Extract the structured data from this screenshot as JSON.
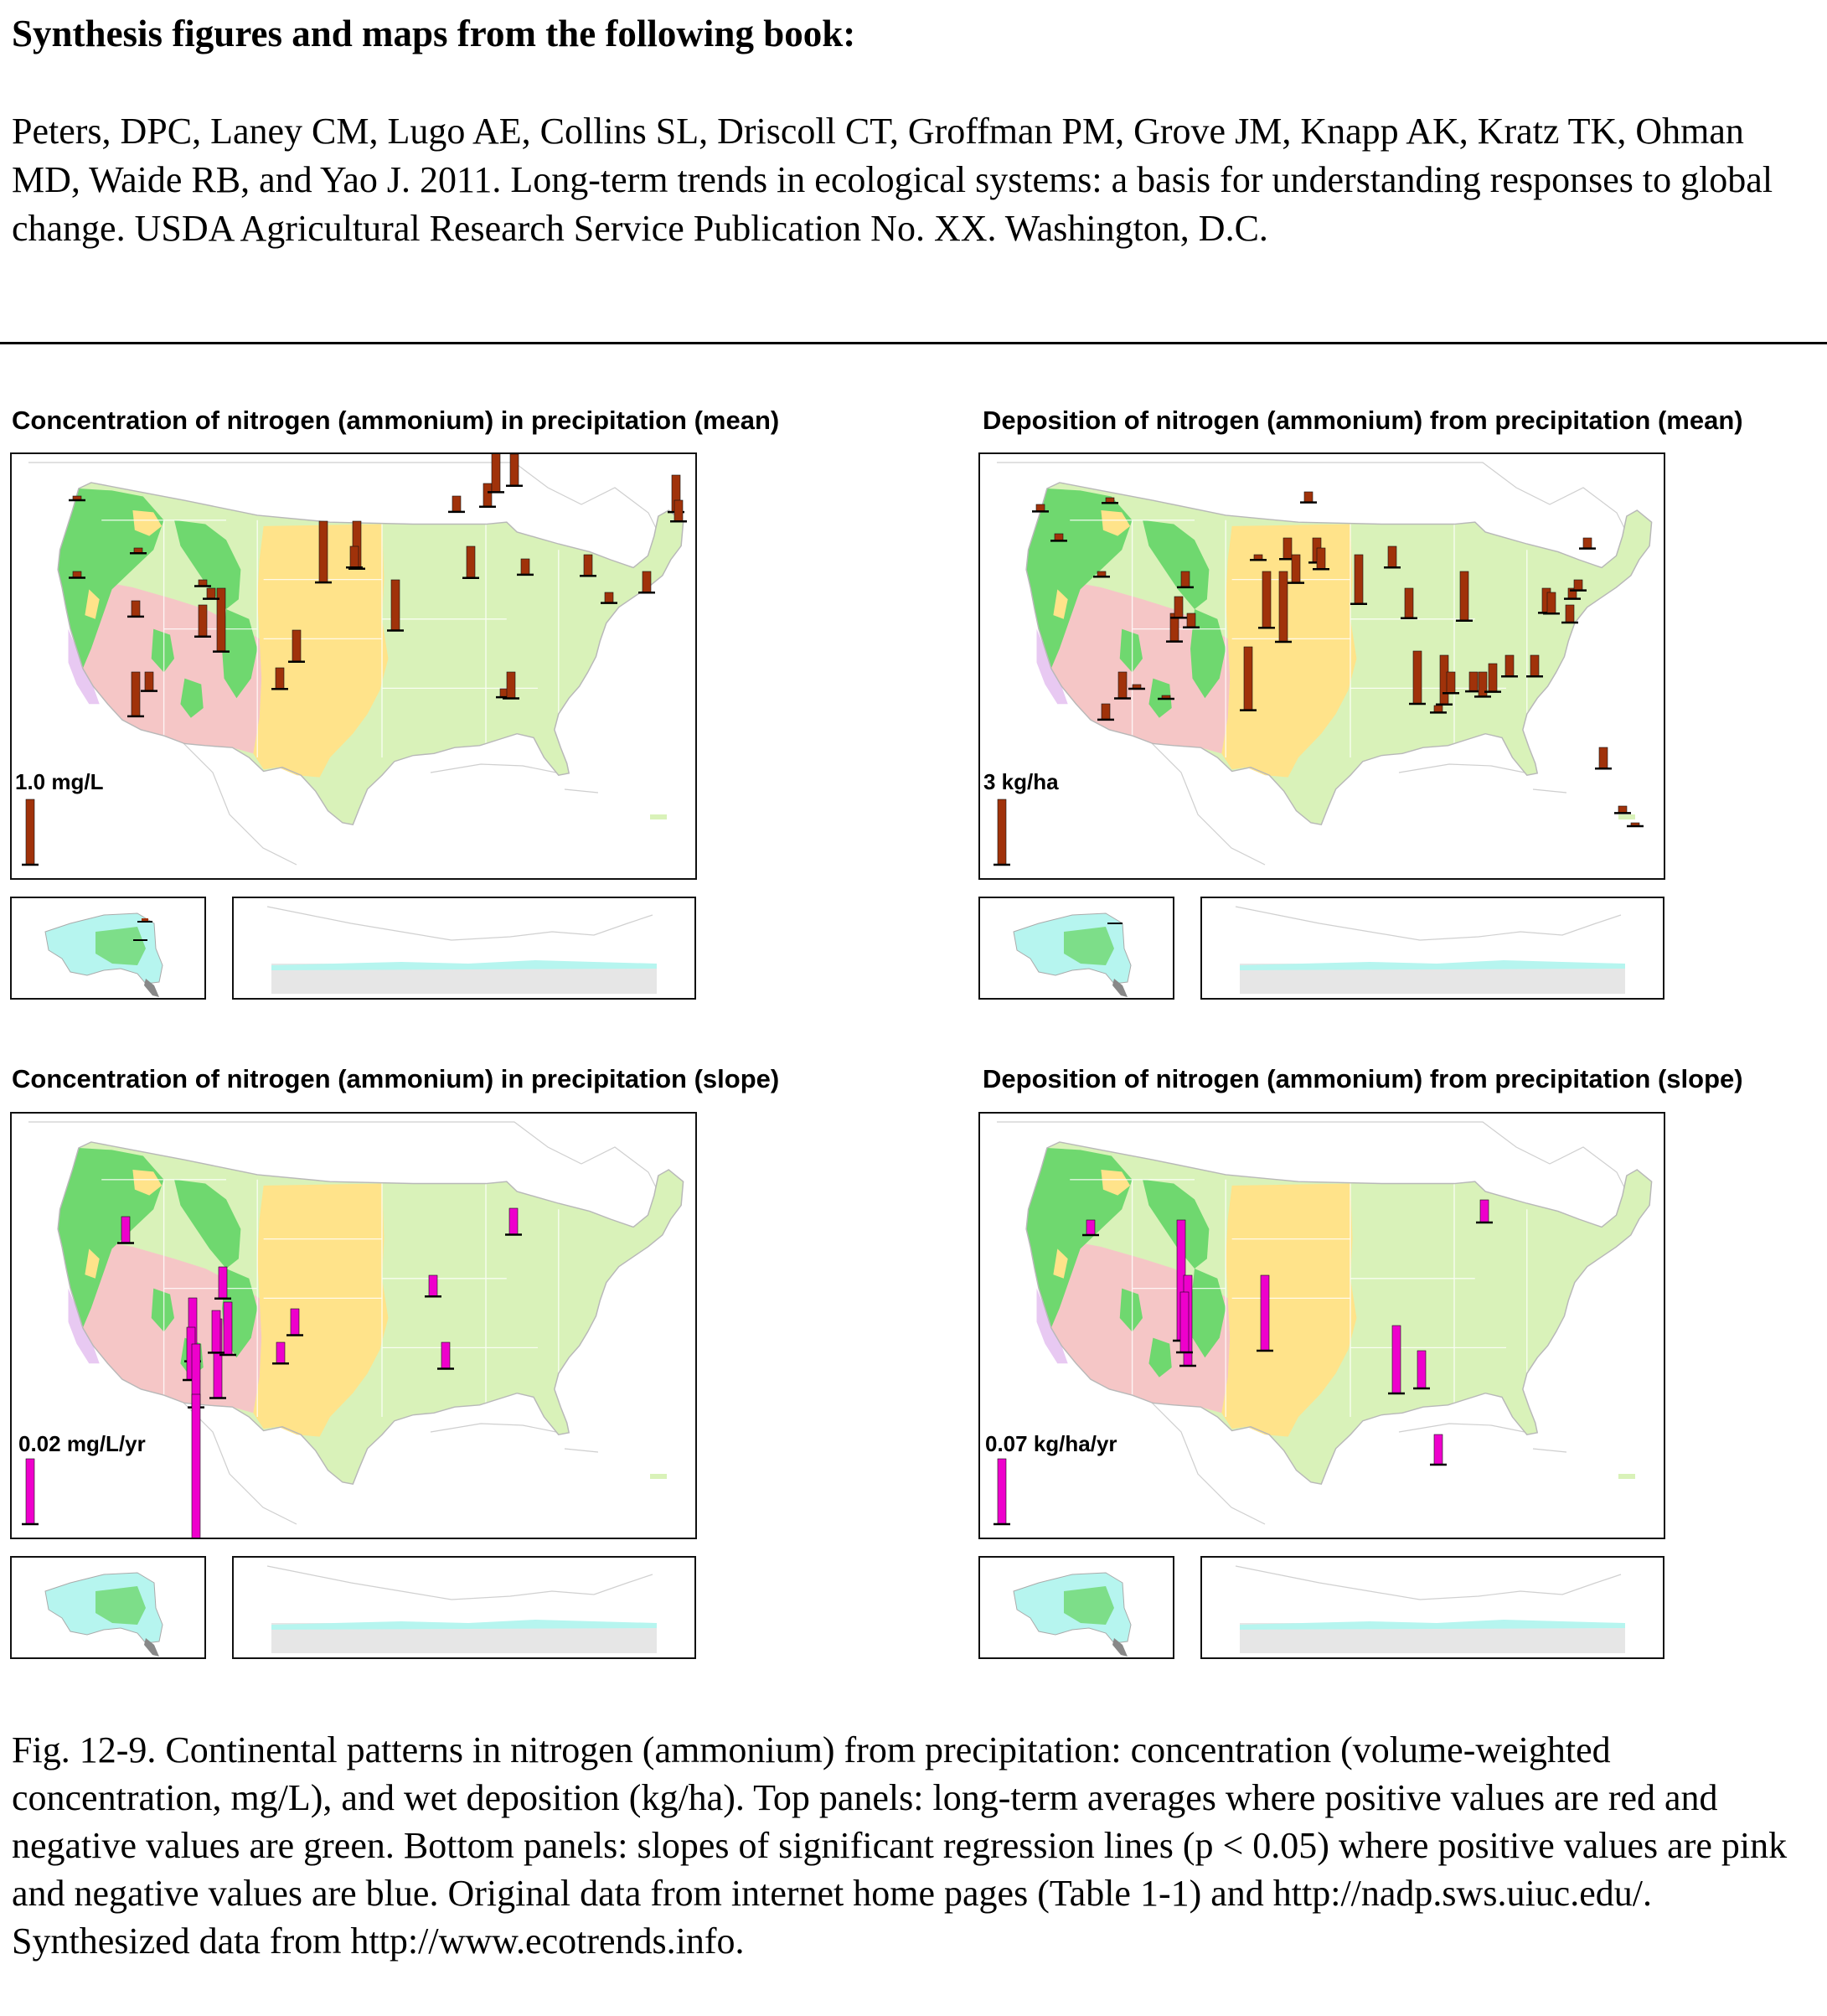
{
  "heading": "Synthesis figures and maps from the following book:",
  "citation": "Peters, DPC, Laney CM, Lugo AE,  Collins SL, Driscoll CT, Groffman PM, Grove JM, Knapp AK, Kratz TK, Ohman MD, Waide RB, and Yao J. 2011. Long-term trends in ecological systems: a basis for understanding responses to global change. USDA Agricultural Research Service Publication No. XX. Washington, D.C.",
  "caption": "Fig. 12-9. Continental patterns in nitrogen (ammonium) from precipitation: concentration (volume-weighted concentration, mg/L), and wet deposition (kg/ha). Top panels: long-term averages where positive values are red and negative values are green. Bottom panels: slopes of significant regression lines (p < 0.05) where positive values are pink and negative values are blue.  Original data from internet home pages (Table 1-1) and http://nadp.sws.uiuc.edu/.  Synthesized data from http://www.ecotrends.info.",
  "colors": {
    "mean_bar": "#a0320a",
    "slope_bar": "#ee00cc",
    "green_dark": "#6fd86f",
    "green_light": "#d9f2b9",
    "pink": "#f5c6c6",
    "yellow": "#ffe38a",
    "lavender": "#e8c9f2",
    "alaska_cyan": "#b6f5ef"
  },
  "panels": [
    {
      "id": "conc-mean",
      "title": "Concentration of nitrogen (ammonium) in precipitation (mean)",
      "scale_label": "1.0 mg/L",
      "bar_type": "mean",
      "scale_value": 1.0,
      "sites": [
        [
          95,
          430,
          0.12
        ],
        [
          148,
          462,
          0.08
        ],
        [
          145,
          520,
          0.05
        ],
        [
          90,
          590,
          0.04
        ],
        [
          90,
          680,
          0.06
        ],
        [
          163,
          652,
          0.05
        ],
        [
          160,
          800,
          0.42
        ],
        [
          176,
          800,
          0.18
        ],
        [
          160,
          715,
          0.15
        ],
        [
          240,
          720,
          0.3
        ],
        [
          262,
          700,
          0.6
        ],
        [
          250,
          700,
          0.1
        ],
        [
          240,
          690,
          0.06
        ],
        [
          352,
          750,
          0.3
        ],
        [
          332,
          795,
          0.2
        ],
        [
          384,
          620,
          0.58
        ],
        [
          424,
          620,
          0.45
        ],
        [
          421,
          650,
          0.2
        ],
        [
          470,
          690,
          0.48
        ],
        [
          524,
          460,
          0.1
        ],
        [
          560,
          650,
          0.3
        ],
        [
          580,
          575,
          0.22
        ],
        [
          590,
          535,
          0.4
        ],
        [
          543,
          590,
          0.15
        ],
        [
          600,
          820,
          0.08
        ],
        [
          612,
          540,
          0.3
        ],
        [
          608,
          800,
          0.25
        ],
        [
          625,
          665,
          0.15
        ],
        [
          700,
          660,
          0.2
        ],
        [
          725,
          705,
          0.1
        ],
        [
          740,
          455,
          0.35
        ],
        [
          747,
          470,
          0.15
        ],
        [
          755,
          465,
          0.3
        ],
        [
          764,
          470,
          0.1
        ],
        [
          770,
          680,
          0.2
        ],
        [
          805,
          565,
          0.35
        ],
        [
          808,
          595,
          0.2
        ],
        [
          900,
          620,
          0.25
        ],
        [
          930,
          650,
          0.15
        ],
        [
          1000,
          690,
          0.28
        ],
        [
          1011,
          680,
          0.1
        ],
        [
          1033,
          710,
          0.1
        ],
        [
          1040,
          660,
          0.2
        ],
        [
          1048,
          660,
          0.15
        ],
        [
          1100,
          680,
          0.2
        ],
        [
          1118,
          600,
          0.25
        ],
        [
          1153,
          640,
          0.25
        ],
        [
          1163,
          605,
          0.3
        ],
        [
          1185,
          410,
          0.3
        ],
        [
          1190,
          430,
          0.25
        ],
        [
          1208,
          405,
          0.2
        ],
        [
          1205,
          665,
          0.15
        ],
        [
          1213,
          690,
          0.1
        ],
        [
          1217,
          825,
          0.15
        ],
        [
          1240,
          920,
          0.1
        ],
        [
          1262,
          950,
          0.05
        ]
      ]
    },
    {
      "id": "dep-mean",
      "title": "Deposition of nitrogen (ammonium) from precipitation (mean)",
      "scale_label": "3 kg/ha",
      "bar_type": "mean",
      "scale_value": 3.0,
      "sites": [
        [
          1240,
          600,
          0.2
        ],
        [
          1262,
          635,
          0.2
        ],
        [
          1323,
          592,
          0.15
        ],
        [
          1313,
          680,
          0.15
        ],
        [
          1338,
          800,
          0.75
        ],
        [
          1400,
          730,
          0.8
        ],
        [
          1405,
          710,
          0.6
        ],
        [
          1413,
          680,
          0.45
        ],
        [
          1420,
          730,
          0.4
        ],
        [
          1318,
          838,
          0.45
        ],
        [
          1355,
          815,
          0.12
        ],
        [
          1390,
          828,
          0.05
        ],
        [
          1488,
          770,
          1.8
        ],
        [
          1500,
          660,
          0.15
        ],
        [
          1510,
          680,
          1.6
        ],
        [
          1530,
          680,
          2.0
        ],
        [
          1535,
          640,
          0.6
        ],
        [
          1545,
          660,
          0.8
        ],
        [
          1570,
          640,
          0.7
        ],
        [
          1560,
          585,
          0.3
        ],
        [
          1575,
          652,
          0.6
        ],
        [
          1620,
          660,
          1.4
        ],
        [
          1660,
          650,
          0.6
        ],
        [
          1680,
          700,
          0.85
        ],
        [
          1690,
          775,
          1.5
        ],
        [
          1722,
          780,
          1.4
        ],
        [
          1730,
          800,
          0.6
        ],
        [
          1746,
          680,
          1.4
        ],
        [
          1757,
          800,
          0.55
        ],
        [
          1768,
          800,
          0.7
        ],
        [
          1780,
          790,
          0.8
        ],
        [
          1800,
          780,
          0.6
        ],
        [
          1830,
          780,
          0.6
        ],
        [
          1844,
          700,
          0.7
        ],
        [
          1850,
          705,
          0.6
        ],
        [
          1872,
          720,
          0.5
        ],
        [
          1875,
          700,
          0.3
        ],
        [
          1882,
          690,
          0.3
        ],
        [
          1893,
          640,
          0.3
        ],
        [
          1912,
          890,
          0.6
        ],
        [
          1935,
          960,
          0.2
        ],
        [
          1950,
          980,
          0.08
        ],
        [
          1715,
          840,
          0.2
        ]
      ]
    },
    {
      "id": "conc-slope",
      "title": "Concentration of nitrogen (ammonium) in precipitation (slope)",
      "scale_label": "0.02 mg/L/yr",
      "bar_type": "slope",
      "scale_value": 0.02,
      "sites": [
        [
          148,
          1450,
          0.005
        ],
        [
          228,
          1547,
          0.012
        ],
        [
          226,
          1582,
          0.01
        ],
        [
          232,
          1602,
          0.012
        ],
        [
          258,
          1572,
          0.015
        ],
        [
          264,
          1510,
          0.006
        ],
        [
          270,
          1552,
          0.01
        ],
        [
          256,
          1562,
          0.008
        ],
        [
          232,
          1662,
          0.04
        ],
        [
          350,
          1560,
          0.005
        ],
        [
          333,
          1600,
          0.004
        ],
        [
          515,
          1520,
          0.004
        ],
        [
          530,
          1600,
          0.005
        ],
        [
          611,
          1440,
          0.005
        ]
      ]
    },
    {
      "id": "dep-slope",
      "title": "Deposition of nitrogen (ammonium) from precipitation (slope)",
      "scale_label": "0.07 kg/ha/yr",
      "bar_type": "slope",
      "scale_value": 0.07,
      "sites": [
        [
          1300,
          1454,
          0.01
        ],
        [
          1408,
          1454,
          0.08
        ],
        [
          1416,
          1520,
          0.06
        ],
        [
          1412,
          1540,
          0.04
        ],
        [
          1508,
          1520,
          0.05
        ],
        [
          1665,
          1580,
          0.045
        ],
        [
          1695,
          1610,
          0.025
        ],
        [
          1770,
          1430,
          0.015
        ],
        [
          1715,
          1710,
          0.02
        ]
      ]
    }
  ]
}
